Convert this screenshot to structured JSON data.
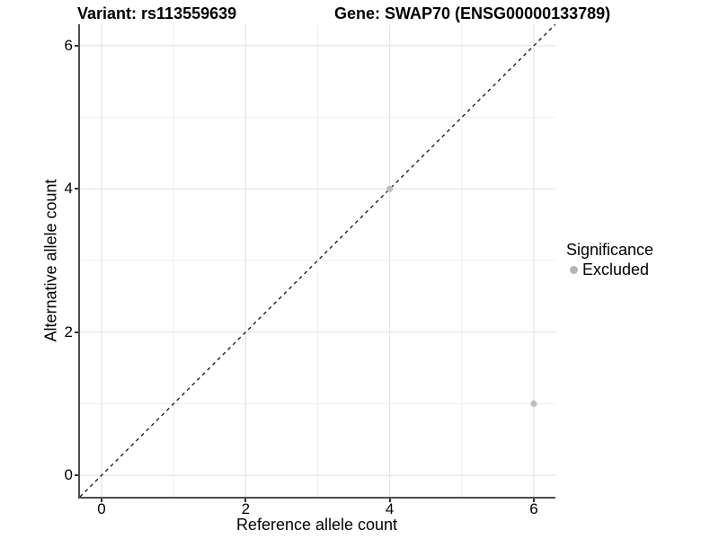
{
  "chart_data": {
    "type": "scatter",
    "title_left": "Variant: rs113559639",
    "title_right": "Gene: SWAP70 (ENSG00000133789)",
    "xlabel": "Reference allele count",
    "ylabel": "Alternative allele count",
    "xlim": [
      -0.3,
      6.3
    ],
    "ylim": [
      -0.3,
      6.3
    ],
    "x_major_ticks": [
      0,
      2,
      4,
      6
    ],
    "x_minor_ticks": [
      1,
      3,
      5
    ],
    "y_major_ticks": [
      0,
      2,
      4,
      6
    ],
    "y_minor_ticks": [
      1,
      3,
      5
    ],
    "grid": true,
    "identity_line": {
      "equation": "y = x",
      "style": "dashed",
      "color": "#111111"
    },
    "series": [
      {
        "name": "Excluded",
        "color": "#bebebe",
        "points": [
          {
            "x": 4,
            "y": 4
          },
          {
            "x": 6,
            "y": 1
          }
        ]
      }
    ],
    "legend": {
      "title": "Significance",
      "position": "right",
      "items": [
        {
          "label": "Excluded",
          "color": "#b4b4b4",
          "marker": "circle"
        }
      ]
    }
  },
  "colors": {
    "background": "#ffffff",
    "grid_major": "#e3e3e3",
    "grid_minor": "#efefef",
    "axis_line": "#4d4d4d",
    "tick_mark": "#333333",
    "text": "#000000"
  }
}
